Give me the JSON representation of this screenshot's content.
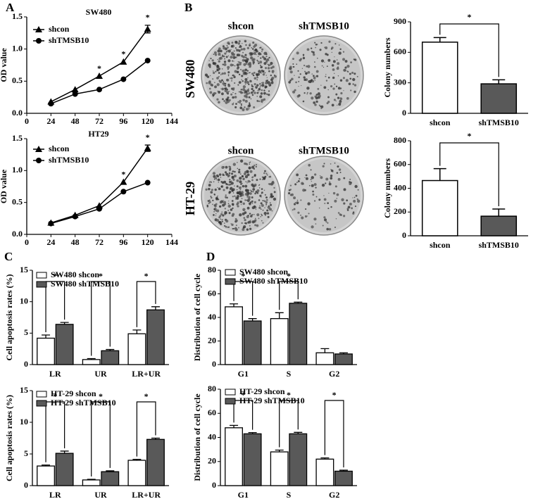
{
  "panels": [
    "A",
    "B",
    "C",
    "D"
  ],
  "plates": {
    "columns": [
      "shcon",
      "shTMSB10",
      "shcon",
      "shTMSB10"
    ],
    "rows": [
      "SW480",
      "HT-29"
    ]
  },
  "chart_data": [
    {
      "type": "line",
      "title": "SW480",
      "y_label": "OD value",
      "x": [
        24,
        48,
        72,
        96,
        120
      ],
      "xlim": [
        0,
        144
      ],
      "xticks": [
        0,
        24,
        48,
        72,
        96,
        120,
        144
      ],
      "ylim": [
        0,
        1.5
      ],
      "yticks": [
        {
          "value": 0,
          "label": "0.0"
        },
        0.5,
        {
          "value": 1,
          "label": "1.0"
        },
        1.5
      ],
      "series": [
        {
          "name": "shcon",
          "color": "#000000",
          "marker": "triangle",
          "values": [
            0.18,
            0.37,
            0.58,
            0.8,
            1.31
          ],
          "errors": [
            null,
            null,
            null,
            null,
            0.06
          ]
        },
        {
          "name": "shTMSB10",
          "color": "#000000",
          "marker": "circle",
          "values": [
            0.15,
            0.3,
            0.37,
            0.53,
            0.82
          ],
          "errors": [
            null,
            null,
            null,
            null,
            null
          ]
        }
      ],
      "annotations": [
        null,
        null,
        "*",
        "*",
        "*"
      ]
    },
    {
      "type": "line",
      "title": "HT29",
      "y_label": "OD value",
      "x": [
        24,
        48,
        72,
        96,
        120
      ],
      "xlim": [
        0,
        144
      ],
      "xticks": [
        0,
        24,
        48,
        72,
        96,
        120,
        144
      ],
      "ylim": [
        0,
        1.5
      ],
      "yticks": [
        {
          "value": 0,
          "label": "0.0"
        },
        0.5,
        {
          "value": 1,
          "label": "1.0"
        },
        1.5
      ],
      "series": [
        {
          "name": "shcon",
          "color": "#000000",
          "marker": "triangle",
          "values": [
            0.18,
            0.3,
            0.45,
            0.82,
            1.35
          ],
          "errors": [
            null,
            null,
            null,
            null,
            0.05
          ]
        },
        {
          "name": "shTMSB10",
          "color": "#000000",
          "marker": "circle",
          "values": [
            0.17,
            0.28,
            0.4,
            0.67,
            0.81
          ],
          "errors": [
            null,
            null,
            null,
            null,
            null
          ]
        }
      ],
      "annotations": [
        null,
        null,
        null,
        "*",
        "*"
      ]
    },
    {
      "type": "bar",
      "y_label": "Colony numbers",
      "categories": [
        "shcon",
        "shTMSB10"
      ],
      "values": [
        700,
        290
      ],
      "errors": [
        45,
        40
      ],
      "colors": [
        "#ffffff",
        "#595959"
      ],
      "ylim": [
        0,
        900
      ],
      "yticks": [
        0,
        300,
        600,
        900
      ],
      "annotation": "*"
    },
    {
      "type": "bar",
      "y_label": "Colony numbers",
      "categories": [
        "shcon",
        "shTMSB10"
      ],
      "values": [
        465,
        165
      ],
      "errors": [
        100,
        60
      ],
      "colors": [
        "#ffffff",
        "#595959"
      ],
      "ylim": [
        0,
        800
      ],
      "yticks": [
        0,
        200,
        400,
        600,
        800
      ],
      "annotation": "*"
    },
    {
      "type": "grouped-bar",
      "y_label": "Cell apoptosis rates (%)",
      "categories": [
        "LR",
        "UR",
        "LR+UR"
      ],
      "series": [
        {
          "name": "SW480 shcon",
          "color": "#ffffff",
          "values": [
            4.2,
            0.8,
            4.9
          ],
          "errors": [
            0.5,
            0.15,
            0.6
          ]
        },
        {
          "name": "SW480 shTMSB10",
          "color": "#595959",
          "values": [
            6.4,
            2.2,
            8.7
          ],
          "errors": [
            0.3,
            0.2,
            0.5
          ]
        }
      ],
      "ylim": [
        0,
        15
      ],
      "yticks": [
        0,
        5,
        10,
        15
      ],
      "annotations": [
        "*",
        "*",
        "*"
      ]
    },
    {
      "type": "grouped-bar",
      "y_label": "Cell apoptosis rates (%)",
      "categories": [
        "LR",
        "UR",
        "LR+UR"
      ],
      "series": [
        {
          "name": "HT-29 shcon",
          "color": "#ffffff",
          "values": [
            3.1,
            0.9,
            4.0
          ],
          "errors": [
            0.15,
            0.1,
            0.15
          ]
        },
        {
          "name": "HT-29 shTMSB10",
          "color": "#595959",
          "values": [
            5.1,
            2.2,
            7.3
          ],
          "errors": [
            0.35,
            0.15,
            0.2
          ]
        }
      ],
      "ylim": [
        0,
        15
      ],
      "yticks": [
        0,
        5,
        10,
        15
      ],
      "annotations": [
        "*",
        "*",
        "*"
      ]
    },
    {
      "type": "grouped-bar",
      "y_label": "Distribution of cell cycle",
      "categories": [
        "G1",
        "S",
        "G2"
      ],
      "series": [
        {
          "name": "SW480 shcon",
          "color": "#ffffff",
          "values": [
            49,
            39,
            10
          ],
          "errors": [
            2.5,
            5,
            3.5
          ]
        },
        {
          "name": "SW480 shTMSB10",
          "color": "#595959",
          "values": [
            37,
            52,
            9
          ],
          "errors": [
            2,
            1,
            1
          ]
        }
      ],
      "ylim": [
        0,
        80
      ],
      "yticks": [
        0,
        20,
        40,
        60,
        80
      ],
      "annotations": [
        "*",
        "*",
        null
      ]
    },
    {
      "type": "grouped-bar",
      "y_label": "Distribution of cell cycle",
      "categories": [
        "G1",
        "S",
        "G2"
      ],
      "series": [
        {
          "name": "HT-29 shcon",
          "color": "#ffffff",
          "values": [
            48,
            28,
            22
          ],
          "errors": [
            2,
            1.5,
            1
          ]
        },
        {
          "name": "HT-29 shTMSB10",
          "color": "#595959",
          "values": [
            43,
            43,
            12
          ],
          "errors": [
            1,
            1.2,
            0.8
          ]
        }
      ],
      "ylim": [
        0,
        80
      ],
      "yticks": [
        0,
        20,
        40,
        60,
        80
      ],
      "annotations": [
        "*",
        "*",
        "*"
      ]
    }
  ]
}
